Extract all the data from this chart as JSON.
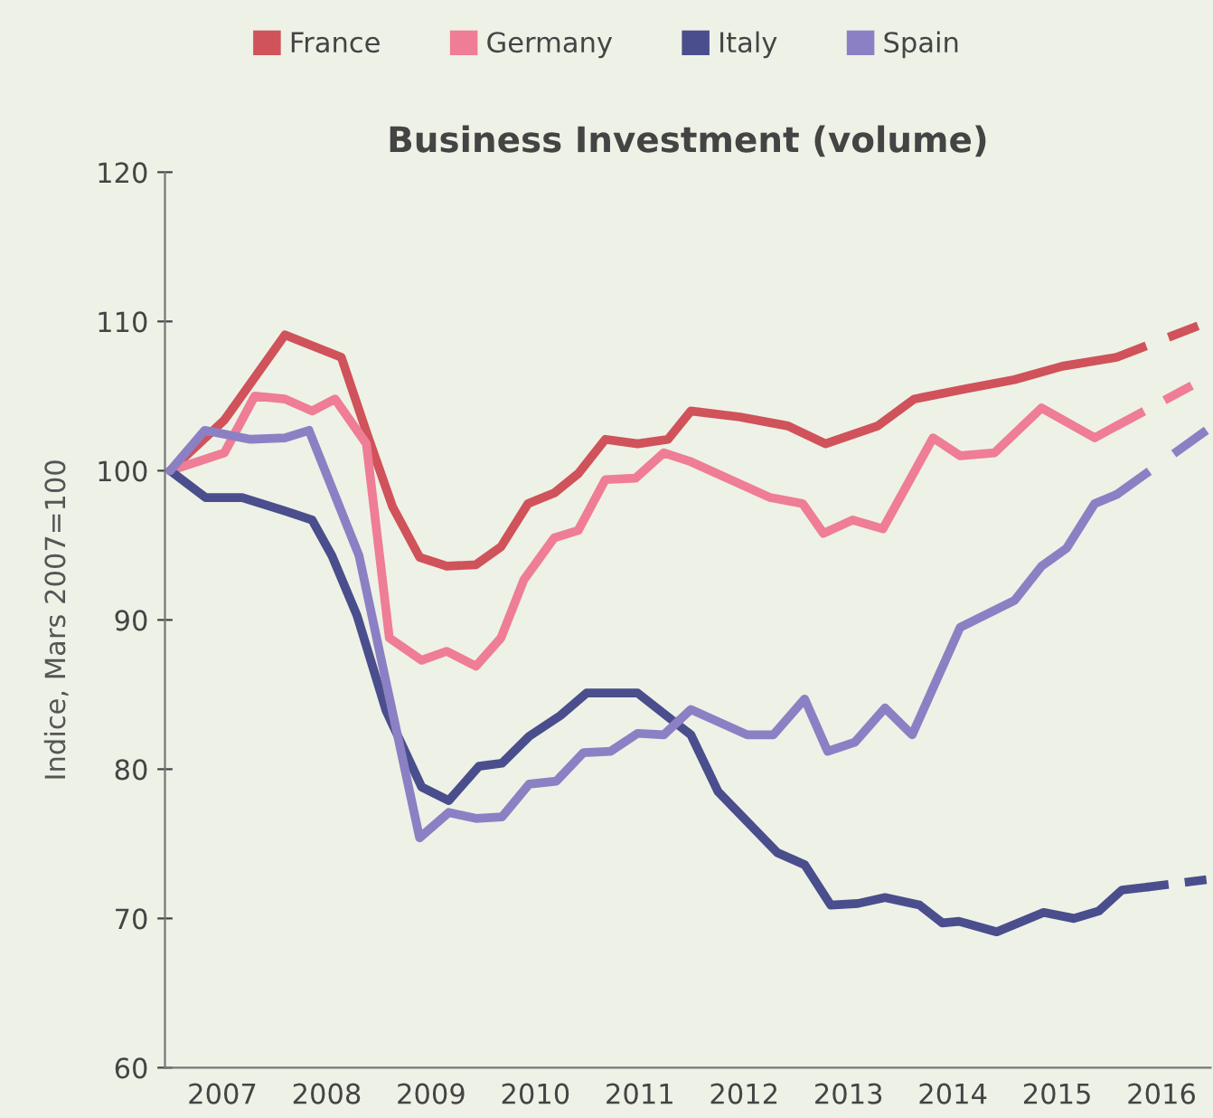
{
  "chart_data": {
    "type": "line",
    "title": "Business Investment (volume)",
    "ylabel": "Indice, Mars 2007=100",
    "xlim": [
      2006.95,
      2016.97
    ],
    "ylim": [
      60,
      120
    ],
    "yticks": [
      60,
      70,
      80,
      90,
      100,
      110,
      120
    ],
    "xticks": [
      {
        "value": 2007.5,
        "label": "2007"
      },
      {
        "value": 2008.5,
        "label": "2008"
      },
      {
        "value": 2009.5,
        "label": "2009"
      },
      {
        "value": 2010.5,
        "label": "2010"
      },
      {
        "value": 2011.5,
        "label": "2011"
      },
      {
        "value": 2012.5,
        "label": "2012"
      },
      {
        "value": 2013.5,
        "label": "2013"
      },
      {
        "value": 2014.5,
        "label": "2014"
      },
      {
        "value": 2015.5,
        "label": "2015"
      },
      {
        "value": 2016.5,
        "label": "2016"
      }
    ],
    "grid": false,
    "legend": "top",
    "marker": "none",
    "series": [
      {
        "name": "France",
        "color": "#d0525a",
        "line_style": "solid",
        "x": [
          2007.0,
          2007.52,
          2008.1,
          2008.64,
          2008.89,
          2009.13,
          2009.39,
          2009.65,
          2009.93,
          2010.17,
          2010.43,
          2010.68,
          2010.91,
          2011.17,
          2011.48,
          2011.77,
          2011.99,
          2012.46,
          2012.92,
          2013.28,
          2013.78,
          2014.13,
          2014.64,
          2015.09,
          2015.55,
          2016.07
        ],
        "values": [
          100,
          103.4,
          109.1,
          107.6,
          102.4,
          97.6,
          94.2,
          93.6,
          93.7,
          94.9,
          97.8,
          98.5,
          99.8,
          102.1,
          101.8,
          102.1,
          104.0,
          103.6,
          103.0,
          101.8,
          103.0,
          104.8,
          105.5,
          106.1,
          107.0,
          107.6
        ]
      },
      {
        "name": "Germany",
        "color": "#ee7d95",
        "line_style": "solid",
        "x": [
          2007.0,
          2007.52,
          2007.81,
          2008.1,
          2008.36,
          2008.58,
          2008.88,
          2009.1,
          2009.41,
          2009.65,
          2009.93,
          2010.17,
          2010.39,
          2010.68,
          2010.91,
          2011.17,
          2011.46,
          2011.73,
          2011.99,
          2012.75,
          2013.06,
          2013.26,
          2013.54,
          2013.83,
          2014.31,
          2014.57,
          2014.9,
          2015.35,
          2015.86,
          2016.07
        ],
        "values": [
          100,
          101.2,
          105.0,
          104.8,
          104.0,
          104.8,
          101.8,
          88.8,
          87.3,
          87.9,
          86.9,
          88.8,
          92.7,
          95.5,
          96.0,
          99.4,
          99.5,
          101.2,
          100.6,
          98.2,
          97.8,
          95.8,
          96.7,
          96.1,
          102.2,
          101.0,
          101.2,
          104.2,
          102.2,
          103.0
        ]
      },
      {
        "name": "Italy",
        "color": "#4a4e8c",
        "line_style": "solid",
        "x": [
          2007.0,
          2007.34,
          2007.69,
          2008.1,
          2008.36,
          2008.55,
          2008.79,
          2009.07,
          2009.41,
          2009.67,
          2009.96,
          2010.18,
          2010.44,
          2010.74,
          2010.99,
          2011.48,
          2011.99,
          2012.25,
          2012.82,
          2013.08,
          2013.33,
          2013.59,
          2013.85,
          2014.18,
          2014.4,
          2014.56,
          2014.92,
          2015.37,
          2015.66,
          2015.9,
          2016.12,
          2016.36
        ],
        "values": [
          100,
          98.2,
          98.2,
          97.3,
          96.7,
          94.3,
          90.3,
          83.9,
          78.8,
          77.9,
          80.2,
          80.4,
          82.2,
          83.6,
          85.1,
          85.1,
          82.3,
          78.5,
          74.4,
          73.6,
          70.9,
          71.0,
          71.4,
          70.9,
          69.7,
          69.8,
          69.1,
          70.4,
          70.0,
          70.5,
          71.9,
          72.1
        ]
      },
      {
        "name": "Spain",
        "color": "#8c80c4",
        "line_style": "solid",
        "x": [
          2007.0,
          2007.33,
          2007.77,
          2008.1,
          2008.33,
          2008.81,
          2009.07,
          2009.39,
          2009.67,
          2009.93,
          2010.18,
          2010.44,
          2010.7,
          2010.96,
          2011.22,
          2011.48,
          2011.73,
          2011.99,
          2012.53,
          2012.78,
          2013.08,
          2013.3,
          2013.56,
          2013.85,
          2014.11,
          2014.57,
          2015.09,
          2015.35,
          2015.59,
          2015.86,
          2016.07
        ],
        "values": [
          100,
          102.7,
          102.1,
          102.2,
          102.7,
          94.3,
          85.8,
          75.4,
          77.1,
          76.7,
          76.8,
          79.0,
          79.2,
          81.1,
          81.2,
          82.4,
          82.3,
          84.0,
          82.3,
          82.3,
          84.7,
          81.2,
          81.8,
          84.1,
          82.3,
          89.5,
          91.3,
          93.6,
          94.8,
          97.8,
          98.4
        ]
      },
      {
        "color": "#d0525a",
        "line_style": "dashed",
        "x": [
          2016.07,
          2016.85
        ],
        "values": [
          107.6,
          109.7
        ]
      },
      {
        "color": "#ee7d95",
        "line_style": "dashed",
        "x": [
          2016.07,
          2016.79
        ],
        "values": [
          103.0,
          105.7
        ]
      },
      {
        "color": "#4a4e8c",
        "line_style": "dashed",
        "x": [
          2016.36,
          2016.93
        ],
        "values": [
          72.1,
          72.6
        ]
      },
      {
        "color": "#8c80c4",
        "line_style": "dashed",
        "x": [
          2016.07,
          2016.93
        ],
        "values": [
          98.4,
          102.7
        ]
      }
    ]
  }
}
